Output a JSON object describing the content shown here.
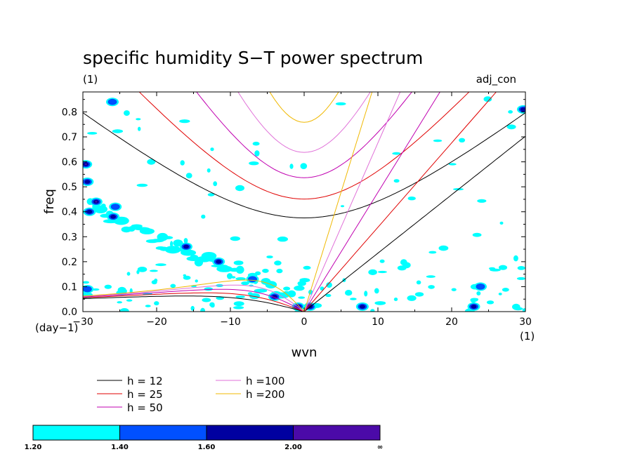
{
  "chart_data": {
    "type": "contour",
    "title": "specific humidity S−T power spectrum",
    "subtitle": "(1)",
    "label_right": "adj_con",
    "xlabel": "wvn",
    "ylabel": "freq",
    "x_unit": "(1)",
    "y_unit": "(day−1)",
    "xlim": [
      -30,
      30
    ],
    "ylim": [
      0,
      0.88
    ],
    "x_ticks": [
      -30,
      -20,
      -10,
      0,
      10,
      20,
      30
    ],
    "x_tick_labels": [
      "−30",
      "−20",
      "−10",
      "0",
      "10",
      "20",
      "30"
    ],
    "y_ticks": [
      0,
      0.1,
      0.2,
      0.3,
      0.4,
      0.5,
      0.6,
      0.7,
      0.8
    ],
    "y_tick_labels": [
      "0.0",
      "0.1",
      "0.2",
      "0.3",
      "0.4",
      "0.5",
      "0.6",
      "0.7",
      "0.8"
    ],
    "dispersion_curves": [
      {
        "label": "h = 12",
        "h": 12,
        "color": "#000000"
      },
      {
        "label": "h = 25",
        "h": 25,
        "color": "#e00000"
      },
      {
        "label": "h = 50",
        "h": 50,
        "color": "#c000b0"
      },
      {
        "label": "h =100",
        "h": 100,
        "color": "#e070d8"
      },
      {
        "label": "h =200",
        "h": 200,
        "color": "#f0b800"
      }
    ],
    "colorbar": {
      "levels": [
        "1.20",
        "1.40",
        "1.60",
        "2.00",
        "∞"
      ],
      "colors": [
        "#00ffff",
        "#0050ff",
        "#0000a0",
        "#4b0aa8"
      ]
    },
    "contour_regions": [
      {
        "x": -29.6,
        "y": 0.59,
        "level": 3
      },
      {
        "x": -29.4,
        "y": 0.52,
        "level": 2
      },
      {
        "x": -28.2,
        "y": 0.44,
        "level": 3
      },
      {
        "x": -29.1,
        "y": 0.4,
        "level": 2
      },
      {
        "x": -25.9,
        "y": 0.38,
        "level": 2
      },
      {
        "x": -25.6,
        "y": 0.42,
        "level": 1
      },
      {
        "x": -16.0,
        "y": 0.26,
        "level": 2
      },
      {
        "x": -11.6,
        "y": 0.2,
        "level": 2
      },
      {
        "x": -7.0,
        "y": 0.13,
        "level": 1
      },
      {
        "x": -4.0,
        "y": 0.06,
        "level": 2
      },
      {
        "x": -0.8,
        "y": 0.02,
        "level": 3
      },
      {
        "x": 0.8,
        "y": 0.02,
        "level": 2
      },
      {
        "x": 7.9,
        "y": 0.02,
        "level": 2
      },
      {
        "x": 23.0,
        "y": 0.02,
        "level": 2
      },
      {
        "x": 23.9,
        "y": 0.1,
        "level": 1
      },
      {
        "x": 29.7,
        "y": 0.81,
        "level": 2
      },
      {
        "x": -29.4,
        "y": 0.09,
        "level": 1
      },
      {
        "x": -26.0,
        "y": 0.84,
        "level": 1
      }
    ]
  }
}
